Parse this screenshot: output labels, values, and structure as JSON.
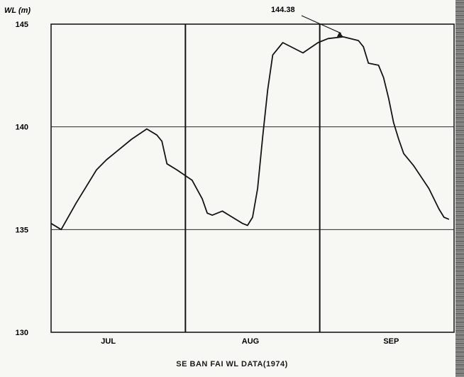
{
  "chart_data": {
    "type": "line",
    "title": "SE BAN FAI WL DATA(1974)",
    "ylabel": "WL (m)",
    "xlabel": "",
    "ylim": [
      130,
      145
    ],
    "yticks": [
      "145",
      "140",
      "135",
      "130"
    ],
    "ytick_values": [
      145,
      140,
      135,
      130
    ],
    "categories": [
      "JUL",
      "AUG",
      "SEP"
    ],
    "grid": true,
    "annotation": {
      "text": "144.38",
      "x_day": 58,
      "y": 144.38
    },
    "series": [
      {
        "points": [
          [
            0,
            135.3
          ],
          [
            2,
            135.0
          ],
          [
            5,
            136.3
          ],
          [
            9,
            137.9
          ],
          [
            11,
            138.4
          ],
          [
            13,
            138.8
          ],
          [
            16,
            139.4
          ],
          [
            19,
            139.9
          ],
          [
            21,
            139.6
          ],
          [
            22,
            139.3
          ],
          [
            23,
            138.2
          ],
          [
            25,
            137.9
          ],
          [
            28,
            137.4
          ],
          [
            30,
            136.5
          ],
          [
            31,
            135.8
          ],
          [
            32,
            135.7
          ],
          [
            34,
            135.9
          ],
          [
            36,
            135.6
          ],
          [
            38,
            135.3
          ],
          [
            39,
            135.2
          ],
          [
            40,
            135.6
          ],
          [
            41,
            137.0
          ],
          [
            42,
            139.5
          ],
          [
            43,
            141.8
          ],
          [
            44,
            143.5
          ],
          [
            46,
            144.1
          ],
          [
            50,
            143.6
          ],
          [
            53,
            144.1
          ],
          [
            55,
            144.3
          ],
          [
            58,
            144.38
          ],
          [
            61,
            144.2
          ],
          [
            62,
            143.9
          ],
          [
            63,
            143.1
          ],
          [
            65,
            143.0
          ],
          [
            66,
            142.4
          ],
          [
            67,
            141.4
          ],
          [
            68,
            140.2
          ],
          [
            69,
            139.4
          ],
          [
            70,
            138.7
          ],
          [
            72,
            138.1
          ],
          [
            75,
            137.0
          ],
          [
            77,
            136.0
          ],
          [
            78,
            135.6
          ],
          [
            79,
            135.5
          ]
        ]
      }
    ]
  }
}
